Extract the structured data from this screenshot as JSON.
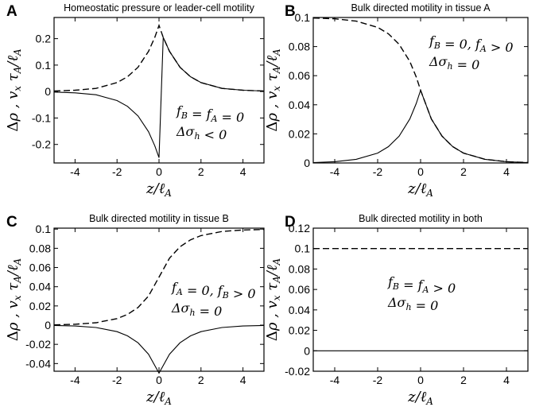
{
  "chart_data": [
    {
      "type": "line",
      "panel_label": "A",
      "title": "Homeostatic pressure or leader-cell motility",
      "xlabel": "z/ℓ_A",
      "ylabel": "Δρ , v_x τ_A/ℓ_A",
      "xlim": [
        -5,
        5
      ],
      "ylim": [
        -0.27,
        0.28
      ],
      "xticks": [
        -4,
        -2,
        0,
        2,
        4
      ],
      "xtick_labels": [
        "-4",
        "-2",
        "0",
        "2",
        "4"
      ],
      "yticks": [
        -0.2,
        -0.1,
        0,
        0.1,
        0.2
      ],
      "ytick_labels": [
        "-0.2",
        "-0.1",
        "0",
        "0.1",
        "0.2"
      ],
      "annotation": [
        "f_B = f_A = 0",
        "Δσ_h < 0"
      ],
      "series": [
        {
          "style": "dashed",
          "x": [
            -5,
            -4,
            -3,
            -2,
            -1.5,
            -1,
            -0.5,
            -0.2,
            0,
            0.2,
            0.5,
            1,
            1.5,
            2,
            3,
            4,
            5
          ],
          "y": [
            0.002,
            0.005,
            0.012,
            0.034,
            0.056,
            0.092,
            0.152,
            0.205,
            0.25,
            0.205,
            0.152,
            0.092,
            0.056,
            0.034,
            0.012,
            0.005,
            0.002
          ]
        },
        {
          "style": "solid",
          "x": [
            -5,
            -4,
            -3,
            -2,
            -1.5,
            -1,
            -0.5,
            -0.2,
            0,
            0.2,
            0.5,
            1,
            1.5,
            2,
            3,
            4,
            5
          ],
          "y": [
            -0.002,
            -0.005,
            -0.012,
            -0.034,
            -0.056,
            -0.092,
            -0.152,
            -0.205,
            -0.25,
            0.205,
            0.152,
            0.092,
            0.056,
            0.034,
            0.012,
            0.005,
            0.002
          ]
        }
      ]
    },
    {
      "type": "line",
      "panel_label": "B",
      "title": "Bulk directed motility in tissue A",
      "xlabel": "z/ℓ_A",
      "ylabel": "Δρ , v_x τ_A/ℓ_A",
      "xlim": [
        -5,
        5
      ],
      "ylim": [
        0,
        0.1
      ],
      "xticks": [
        -4,
        -2,
        0,
        2,
        4
      ],
      "xtick_labels": [
        "-4",
        "-2",
        "0",
        "2",
        "4"
      ],
      "yticks": [
        0,
        0.02,
        0.04,
        0.06,
        0.08,
        0.1
      ],
      "ytick_labels": [
        "0",
        "0.02",
        "0.04",
        "0.06",
        "0.08",
        "0.1"
      ],
      "annotation": [
        "f_B = 0, f_A > 0",
        "Δσ_h = 0"
      ],
      "series": [
        {
          "style": "dashed",
          "x": [
            -5,
            -4,
            -3,
            -2,
            -1.5,
            -1,
            -0.5,
            -0.2,
            0,
            0.5,
            1,
            1.5,
            2,
            3,
            4,
            5
          ],
          "y": [
            0.0996,
            0.0991,
            0.0975,
            0.0932,
            0.0888,
            0.0816,
            0.0697,
            0.059,
            0.05,
            0.0303,
            0.0184,
            0.0112,
            0.0068,
            0.0025,
            0.0009,
            0.0003
          ]
        },
        {
          "style": "solid",
          "x": [
            -5,
            -4,
            -3,
            -2,
            -1.5,
            -1,
            -0.5,
            -0.2,
            0,
            0.5,
            1,
            1.5,
            2,
            3,
            4,
            5
          ],
          "y": [
            0.0003,
            0.0009,
            0.0025,
            0.0068,
            0.0112,
            0.0184,
            0.0303,
            0.041,
            0.05,
            0.0303,
            0.0184,
            0.0112,
            0.0068,
            0.0025,
            0.0009,
            0.0003
          ]
        }
      ]
    },
    {
      "type": "line",
      "panel_label": "C",
      "title": "Bulk directed motility in tissue B",
      "xlabel": "z/ℓ_A",
      "ylabel": "Δρ , v_x τ_A/ℓ_A",
      "xlim": [
        -5,
        5
      ],
      "ylim": [
        -0.048,
        0.101
      ],
      "xticks": [
        -4,
        -2,
        0,
        2,
        4
      ],
      "xtick_labels": [
        "-4",
        "-2",
        "0",
        "2",
        "4"
      ],
      "yticks": [
        -0.04,
        -0.02,
        0,
        0.02,
        0.04,
        0.06,
        0.08,
        0.1
      ],
      "ytick_labels": [
        "-0.04",
        "-0.02",
        "0",
        "0.02",
        "0.04",
        "0.06",
        "0.08",
        "0.1"
      ],
      "annotation": [
        "f_A = 0, f_B > 0",
        "Δσ_h = 0"
      ],
      "series": [
        {
          "style": "dashed",
          "x": [
            -5,
            -4,
            -3,
            -2,
            -1.5,
            -1,
            -0.5,
            0,
            0.5,
            1,
            1.5,
            2,
            3,
            4,
            5
          ],
          "y": [
            0.0003,
            0.0009,
            0.0025,
            0.0068,
            0.0112,
            0.0184,
            0.0303,
            0.05,
            0.0697,
            0.0816,
            0.0888,
            0.0932,
            0.0975,
            0.0991,
            0.0996
          ]
        },
        {
          "style": "solid",
          "x": [
            -5,
            -4,
            -3,
            -2,
            -1.5,
            -1,
            -0.5,
            0,
            0.5,
            1,
            1.5,
            2,
            3,
            4,
            5
          ],
          "y": [
            -0.0003,
            -0.0009,
            -0.0025,
            -0.0068,
            -0.0112,
            -0.0184,
            -0.0303,
            -0.05,
            -0.0303,
            -0.0184,
            -0.0112,
            -0.0068,
            -0.0025,
            -0.0009,
            -0.0003
          ]
        }
      ]
    },
    {
      "type": "line",
      "panel_label": "D",
      "title": "Bulk directed motility in both",
      "xlabel": "z/ℓ_A",
      "ylabel": "Δρ , v_x τ_A/ℓ_A",
      "xlim": [
        -5,
        5
      ],
      "ylim": [
        -0.02,
        0.12
      ],
      "xticks": [
        -4,
        -2,
        0,
        2,
        4
      ],
      "xtick_labels": [
        "-4",
        "-2",
        "0",
        "2",
        "4"
      ],
      "yticks": [
        -0.02,
        0,
        0.02,
        0.04,
        0.06,
        0.08,
        0.1,
        0.12
      ],
      "ytick_labels": [
        "-0.02",
        "0",
        "0.02",
        "0.04",
        "0.06",
        "0.08",
        "0.1",
        "0.12"
      ],
      "annotation": [
        "f_B = f_A > 0",
        "Δσ_h = 0"
      ],
      "series": [
        {
          "style": "dashed",
          "x": [
            -5,
            5
          ],
          "y": [
            0.1,
            0.1
          ]
        },
        {
          "style": "solid",
          "x": [
            -5,
            5
          ],
          "y": [
            0,
            0
          ]
        }
      ]
    }
  ]
}
